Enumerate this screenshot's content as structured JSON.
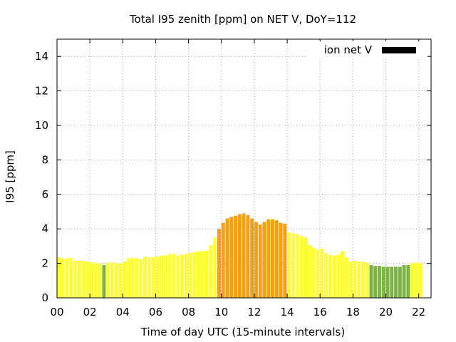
{
  "chart_data": {
    "type": "bar",
    "title": "Total I95 zenith [ppm] on NET V, DoY=112",
    "xlabel": "Time of day UTC (15-minute intervals)",
    "ylabel": "I95 [ppm]",
    "xlim": [
      0,
      22.75
    ],
    "ylim": [
      0,
      15
    ],
    "x_ticks": [
      0,
      2,
      4,
      6,
      8,
      10,
      12,
      14,
      16,
      18,
      20,
      22
    ],
    "x_tick_labels": [
      "00",
      "02",
      "04",
      "06",
      "08",
      "10",
      "12",
      "14",
      "16",
      "18",
      "20",
      "22"
    ],
    "y_ticks": [
      0,
      2,
      4,
      6,
      8,
      10,
      12,
      14
    ],
    "y_tick_labels": [
      "0",
      "2",
      "4",
      "6",
      "8",
      "10",
      "12",
      "14"
    ],
    "grid": true,
    "legend": {
      "label": "ion net V",
      "color": "#000000",
      "position": "top-right"
    },
    "bar_interval_hours": 0.25,
    "color_thresholds": [
      {
        "min": 0,
        "max": 2,
        "color": "#7cb342"
      },
      {
        "min": 2,
        "max": 4,
        "color": "#ffff33"
      },
      {
        "min": 4,
        "max": 6,
        "color": "#f5a010"
      }
    ],
    "values": [
      2.35,
      2.25,
      2.3,
      2.3,
      2.15,
      2.15,
      2.15,
      2.1,
      2.05,
      2.0,
      2.0,
      1.9,
      2.05,
      2.05,
      2.0,
      2.0,
      2.1,
      2.3,
      2.3,
      2.3,
      2.25,
      2.4,
      2.35,
      2.35,
      2.4,
      2.45,
      2.45,
      2.55,
      2.55,
      2.45,
      2.5,
      2.55,
      2.6,
      2.65,
      2.7,
      2.7,
      2.75,
      3.05,
      3.5,
      4.0,
      4.35,
      4.6,
      4.7,
      4.75,
      4.85,
      4.9,
      4.8,
      4.6,
      4.4,
      4.25,
      4.4,
      4.55,
      4.55,
      4.5,
      4.35,
      4.3,
      3.8,
      3.75,
      3.7,
      3.6,
      3.5,
      3.05,
      2.9,
      2.8,
      2.85,
      2.6,
      2.5,
      2.45,
      2.5,
      2.7,
      2.35,
      2.1,
      2.15,
      2.1,
      2.1,
      2.05,
      1.9,
      1.85,
      1.85,
      1.8,
      1.8,
      1.8,
      1.8,
      1.8,
      1.9,
      1.9,
      2.0,
      2.05,
      2.0
    ]
  }
}
